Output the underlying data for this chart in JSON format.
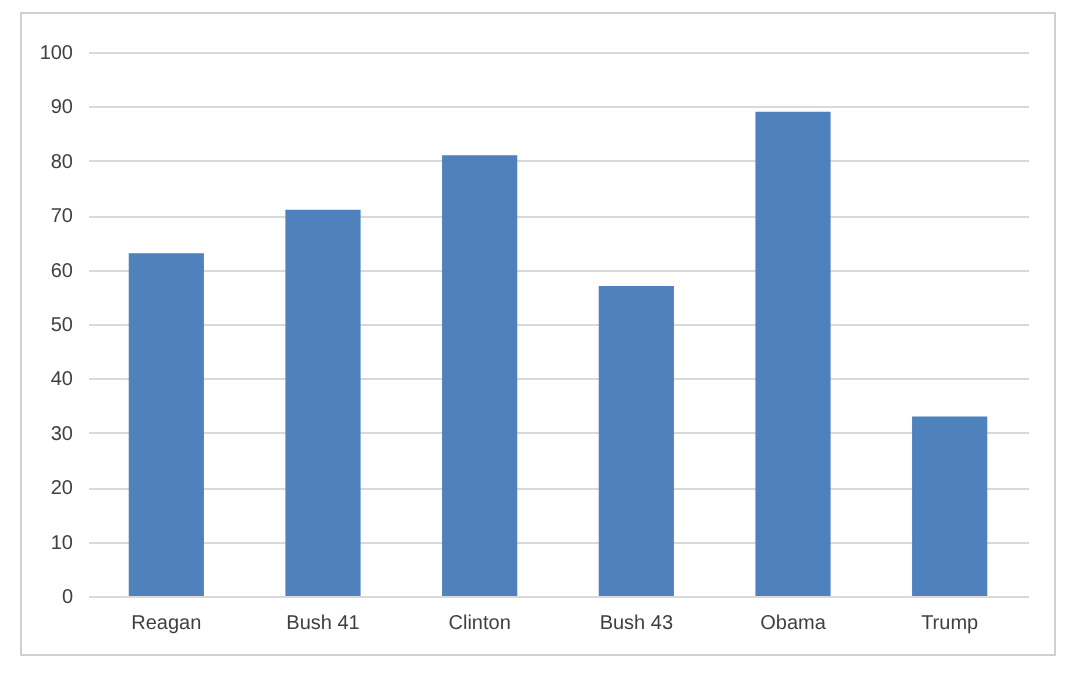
{
  "chart_data": {
    "type": "bar",
    "categories": [
      "Reagan",
      "Bush 41",
      "Clinton",
      "Bush 43",
      "Obama",
      "Trump"
    ],
    "values": [
      63,
      71,
      81,
      57,
      89,
      33
    ],
    "color": "#4f81bd",
    "ylim": [
      0,
      100
    ],
    "yticks": [
      0,
      10,
      20,
      30,
      40,
      50,
      60,
      70,
      80,
      90,
      100
    ],
    "grid": "y"
  }
}
